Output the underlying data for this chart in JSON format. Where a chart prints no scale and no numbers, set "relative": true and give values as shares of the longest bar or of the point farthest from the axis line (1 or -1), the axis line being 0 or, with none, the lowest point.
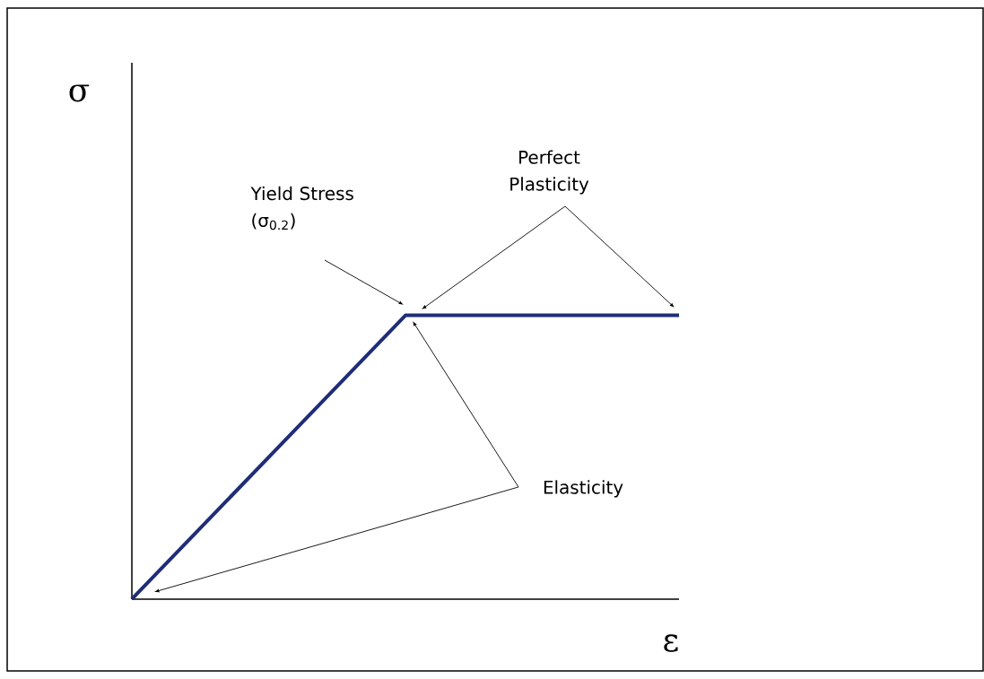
{
  "chart_data": {
    "type": "line",
    "relative": true,
    "categories": [
      null,
      null,
      null
    ],
    "values": [
      0,
      1,
      1
    ],
    "color": "#1f2d78",
    "xlabel": "ε",
    "annotations": [
      "Yield Stress (σ$_{0.2}$)",
      "Perfect Plasticity",
      "Elasticity",
      "σ"
    ]
  }
}
